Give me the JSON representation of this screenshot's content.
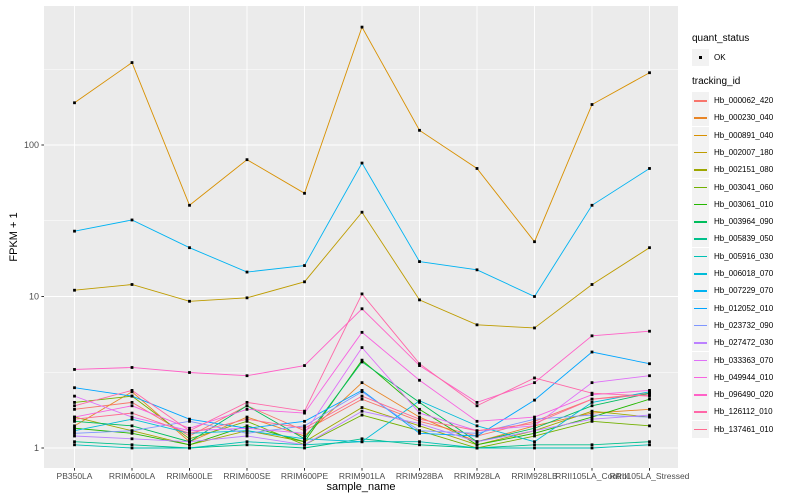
{
  "chart_data": {
    "type": "line",
    "title": "",
    "xlabel": "sample_name",
    "ylabel": "FPKM + 1",
    "scale": "log10",
    "grid": "on",
    "legend_position": "right",
    "yticks": [
      1,
      10,
      100
    ],
    "ytick_labels": [
      "1",
      "10",
      "100"
    ],
    "yminor": [
      3.1623,
      31.623,
      316.23
    ],
    "ylim_log": [
      -0.132,
      2.917
    ],
    "point_color": "#000000",
    "categories": [
      "PB350LA",
      "RRIM600LA",
      "RRIM600LE",
      "RRIM600SE",
      "RRIM600PE",
      "RRIM901LA",
      "RRIM928BA",
      "RRIM928LA",
      "RRIM928LB",
      "RRII105LA_Control",
      "RRII105LA_Stressed"
    ],
    "series": [
      {
        "name": "Hb_000062_420",
        "color": "#F8766D",
        "values": [
          1.8,
          2.0,
          1.2,
          1.9,
          1.3,
          2.1,
          1.5,
          1.2,
          1.5,
          2.1,
          2.3
        ]
      },
      {
        "name": "Hb_000230_040",
        "color": "#E88526",
        "values": [
          1.4,
          2.35,
          1.1,
          1.6,
          1.2,
          2.7,
          1.6,
          1.1,
          1.4,
          1.7,
          1.8
        ]
      },
      {
        "name": "Hb_000891_040",
        "color": "#D89000",
        "values": [
          190,
          350,
          40,
          80,
          48,
          600,
          125,
          70,
          23,
          185,
          300
        ]
      },
      {
        "name": "Hb_002007_180",
        "color": "#BE9C00",
        "values": [
          11,
          12,
          9.3,
          9.8,
          12.5,
          36,
          9.5,
          6.5,
          6.2,
          12,
          21
        ]
      },
      {
        "name": "Hb_002151_080",
        "color": "#9EA700",
        "values": [
          1.6,
          1.3,
          1.05,
          1.3,
          1.1,
          1.85,
          1.4,
          1.05,
          1.3,
          1.75,
          1.6
        ]
      },
      {
        "name": "Hb_003041_060",
        "color": "#72B000",
        "values": [
          2.0,
          2.2,
          1.15,
          1.5,
          1.05,
          1.65,
          1.3,
          1.0,
          1.2,
          1.5,
          1.4
        ]
      },
      {
        "name": "Hb_003061_010",
        "color": "#24B700",
        "values": [
          1.35,
          1.25,
          1.05,
          1.4,
          1.1,
          3.8,
          1.8,
          1.05,
          1.25,
          1.6,
          2.1
        ]
      },
      {
        "name": "Hb_003964_090",
        "color": "#00BD5C",
        "values": [
          1.5,
          1.4,
          1.1,
          1.9,
          1.15,
          3.7,
          2.0,
          1.1,
          1.35,
          1.9,
          2.3
        ]
      },
      {
        "name": "Hb_005839_050",
        "color": "#00C08B",
        "values": [
          1.1,
          1.05,
          1.0,
          1.05,
          1.0,
          1.15,
          1.05,
          1.0,
          1.05,
          1.05,
          1.1
        ]
      },
      {
        "name": "Hb_005916_030",
        "color": "#00C0B4",
        "values": [
          1.05,
          1.0,
          1.0,
          1.1,
          1.05,
          1.1,
          1.1,
          1.0,
          1.0,
          1.0,
          1.05
        ]
      },
      {
        "name": "Hb_006018_070",
        "color": "#00BCD8",
        "values": [
          1.3,
          1.55,
          1.25,
          1.3,
          1.15,
          1.1,
          2.05,
          1.4,
          1.1,
          2.0,
          2.35
        ]
      },
      {
        "name": "Hb_007229_070",
        "color": "#00B3F2",
        "values": [
          27,
          32,
          21,
          14.5,
          16,
          76,
          17,
          15,
          10,
          40,
          70
        ]
      },
      {
        "name": "Hb_012052_010",
        "color": "#00A5FF",
        "values": [
          2.5,
          2.2,
          1.55,
          1.35,
          1.5,
          2.4,
          1.25,
          1.2,
          2.07,
          4.3,
          3.6
        ]
      },
      {
        "name": "Hb_023732_090",
        "color": "#7E96FF",
        "values": [
          1.25,
          1.3,
          1.5,
          1.25,
          1.4,
          2.35,
          1.3,
          1.25,
          1.55,
          1.65,
          1.6
        ]
      },
      {
        "name": "Hb_027472_030",
        "color": "#BC81FF",
        "values": [
          1.2,
          1.15,
          1.1,
          1.2,
          1.05,
          1.75,
          1.45,
          1.1,
          1.3,
          1.55,
          1.65
        ]
      },
      {
        "name": "Hb_033363_070",
        "color": "#DF70F8",
        "values": [
          2.2,
          1.6,
          1.3,
          1.35,
          1.25,
          4.6,
          1.7,
          1.3,
          1.4,
          2.7,
          3.0
        ]
      },
      {
        "name": "Hb_049944_010",
        "color": "#F763E0",
        "values": [
          1.6,
          1.9,
          1.35,
          1.8,
          1.7,
          5.8,
          2.8,
          1.5,
          1.6,
          2.25,
          2.4
        ]
      },
      {
        "name": "Hb_096490_020",
        "color": "#FF61C7",
        "values": [
          3.3,
          3.4,
          3.15,
          3.0,
          3.5,
          8.3,
          3.5,
          2.0,
          2.7,
          5.5,
          5.9
        ]
      },
      {
        "name": "Hb_126112_010",
        "color": "#FF67A8",
        "values": [
          1.9,
          2.4,
          1.3,
          2.0,
          1.75,
          10.4,
          3.6,
          1.9,
          2.9,
          2.3,
          2.2
        ]
      },
      {
        "name": "Hb_137461_010",
        "color": "#FF6C91",
        "values": [
          1.55,
          1.7,
          1.25,
          1.55,
          1.35,
          2.2,
          1.55,
          1.3,
          1.45,
          2.1,
          2.25
        ]
      }
    ]
  },
  "legend": {
    "quant_status_title": "quant_status",
    "quant_status_items": [
      {
        "label": "OK"
      }
    ],
    "tracking_title": "tracking_id"
  },
  "style_colors": {
    "panel_background": "#EBEBEB",
    "gridline": "#FFFFFF",
    "tick_text": "#4D4D4D",
    "tick_mark": "#333333",
    "legend_key_background": "#F2F2F2"
  }
}
